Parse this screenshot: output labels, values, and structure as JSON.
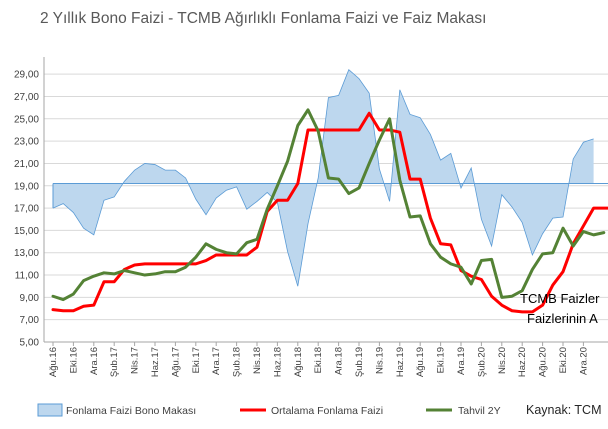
{
  "colors": {
    "spread_fill": "#BDD7EE",
    "spread_line": "#5B9BD5",
    "funding": "#FF0000",
    "bond": "#548235",
    "grid": "#D9D9D9",
    "axis": "#A6A6A6"
  },
  "chart_data": {
    "type": "line",
    "title": "2 Yıllık Bono Faizi -  TCMB Ağırlıklı Fonlama Faizi ve Faiz Makası",
    "ylim": [
      5,
      30
    ],
    "yticks": [
      "5,00",
      "7,00",
      "9,00",
      "11,00",
      "13,00",
      "15,00",
      "17,00",
      "19,00",
      "21,00",
      "23,00",
      "25,00",
      "27,00",
      "29,00"
    ],
    "x_tick_labels": [
      "Ağu.16",
      "Eki.16",
      "Ara.16",
      "Şub.17",
      "Nis.17",
      "Haz.17",
      "Ağu.17",
      "Eki.17",
      "Ara.17",
      "Şub.18",
      "Nis.18",
      "Haz.18",
      "Ağu.18",
      "Eki.18",
      "Ara.18",
      "Şub.19",
      "Nis.19",
      "Haz.19",
      "Ağu.19",
      "Eki.19",
      "Ara.19",
      "Şub.20",
      "Nis.20",
      "Haz.20",
      "Ağu.20",
      "Eki.20",
      "Ara.20"
    ],
    "spread_baseline": 19.2,
    "series": [
      {
        "name": "Fonlama Faizi Bono Makası",
        "style": "area",
        "values": [
          17.0,
          17.4,
          16.6,
          15.2,
          14.6,
          17.7,
          18.0,
          19.4,
          20.4,
          21.0,
          20.9,
          20.4,
          20.4,
          19.7,
          17.8,
          16.4,
          17.9,
          18.6,
          18.9,
          16.9,
          17.6,
          18.4,
          17.5,
          13.1,
          10.0,
          15.6,
          19.7,
          26.9,
          27.1,
          29.4,
          28.6,
          27.3,
          20.5,
          17.6,
          27.6,
          25.4,
          25.1,
          23.6,
          21.3,
          21.9,
          18.8,
          20.6,
          16.0,
          13.6,
          18.2,
          17.1,
          15.7,
          12.8,
          14.7,
          16.1,
          16.2,
          21.4,
          22.9,
          23.2
        ]
      },
      {
        "name": "Ortalama Fonlama Faizi",
        "style": "line",
        "values": [
          7.9,
          7.8,
          7.8,
          8.2,
          8.3,
          10.4,
          10.4,
          11.5,
          11.9,
          12.0,
          12.0,
          12.0,
          12.0,
          12.0,
          12.0,
          12.3,
          12.8,
          12.8,
          12.8,
          12.8,
          13.5,
          16.7,
          17.7,
          17.7,
          19.2,
          24.0,
          24.0,
          24.0,
          24.0,
          24.0,
          24.0,
          25.5,
          24.0,
          24.0,
          23.8,
          19.6,
          19.6,
          16.1,
          13.8,
          13.7,
          11.4,
          10.9,
          10.6,
          9.1,
          8.3,
          7.8,
          7.7,
          7.7,
          8.3,
          10.1,
          11.3,
          13.8,
          15.4,
          17.0,
          17.0,
          17.0
        ]
      },
      {
        "name": "Tahvil 2Y",
        "style": "line",
        "values": [
          9.1,
          8.8,
          9.3,
          10.5,
          10.9,
          11.2,
          11.1,
          11.4,
          11.2,
          11.0,
          11.1,
          11.3,
          11.3,
          11.7,
          12.6,
          13.8,
          13.3,
          13.0,
          12.9,
          13.9,
          14.2,
          16.9,
          19.0,
          21.2,
          24.4,
          25.8,
          23.9,
          19.7,
          19.6,
          18.3,
          18.8,
          21.0,
          23.1,
          25.0,
          19.5,
          16.2,
          16.3,
          13.8,
          12.6,
          12.0,
          11.7,
          10.2,
          12.3,
          12.4,
          9.0,
          9.1,
          9.6,
          11.5,
          12.9,
          13.0,
          15.2,
          13.6,
          14.9,
          14.6,
          14.8
        ]
      }
    ],
    "legend": {
      "position": "bottom"
    },
    "annotations": [
      "TCMB Faizler",
      "Faizlerinin A"
    ],
    "source": "Kaynak: TCM"
  }
}
